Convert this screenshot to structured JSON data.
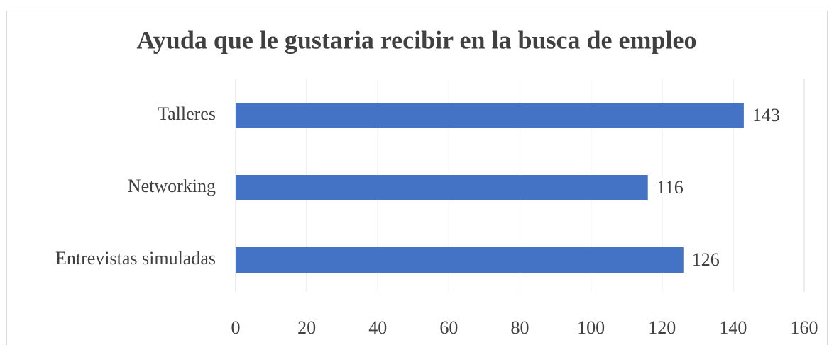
{
  "chart_data": {
    "type": "bar",
    "orientation": "horizontal",
    "title": "Ayuda que le gustaria recibir en la busca de empleo",
    "categories": [
      "Talleres",
      "Networking",
      "Entrevistas simuladas"
    ],
    "values": [
      143,
      116,
      126
    ],
    "color": "#4472c4",
    "xlim": [
      0,
      160
    ],
    "xticks": [
      0,
      20,
      40,
      60,
      80,
      100,
      120,
      140,
      160
    ],
    "grid": true
  }
}
